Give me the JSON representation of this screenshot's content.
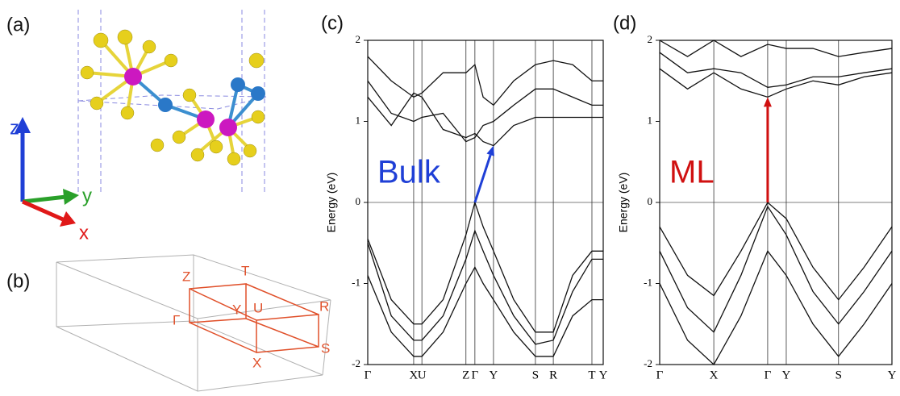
{
  "figure": {
    "panel_labels": [
      "(a)",
      "(b)"
    ],
    "axis_labels": [
      "z",
      "y",
      "x"
    ],
    "bz_points": [
      "Z",
      "T",
      "Y",
      "U",
      "R",
      "Γ",
      "X",
      "S"
    ]
  },
  "chart_data": [
    {
      "type": "line",
      "title": "(c)",
      "ylabel": "Energy (eV)",
      "annotation": "Bulk",
      "annotation_color": "#1f3fd6",
      "ylim": [
        -2,
        2
      ],
      "yticks": [
        -2,
        -1,
        0,
        1,
        2
      ],
      "xlim": [
        0,
        100
      ],
      "xticks": [
        {
          "value": 0,
          "label": "Γ"
        },
        {
          "value": 19.5,
          "label": "X"
        },
        {
          "value": 23,
          "label": "U"
        },
        {
          "value": 41.7,
          "label": "Z"
        },
        {
          "value": 45.5,
          "label": "Γ"
        },
        {
          "value": 53.4,
          "label": "Y"
        },
        {
          "value": 71.2,
          "label": "S"
        },
        {
          "value": 78.8,
          "label": "R"
        },
        {
          "value": 95.2,
          "label": "T"
        },
        {
          "value": 100,
          "label": "Y"
        }
      ],
      "x": [
        0,
        10,
        19.5,
        23,
        32,
        41.7,
        45.5,
        49,
        53.4,
        62,
        71.2,
        78.8,
        87,
        95.2,
        100
      ],
      "series": [
        {
          "color": "#111111",
          "values": [
            -0.45,
            -1.2,
            -1.5,
            -1.5,
            -1.2,
            -0.4,
            0.0,
            -0.3,
            -0.6,
            -1.2,
            -1.6,
            -1.6,
            -0.9,
            -0.6,
            -0.6
          ]
        },
        {
          "color": "#111111",
          "values": [
            -0.5,
            -1.4,
            -1.7,
            -1.7,
            -1.4,
            -0.7,
            -0.35,
            -0.6,
            -0.9,
            -1.4,
            -1.75,
            -1.7,
            -1.1,
            -0.7,
            -0.7
          ]
        },
        {
          "color": "#111111",
          "values": [
            -0.9,
            -1.6,
            -1.9,
            -1.9,
            -1.6,
            -1.0,
            -0.8,
            -1.0,
            -1.2,
            -1.6,
            -1.9,
            -1.9,
            -1.4,
            -1.2,
            -1.2
          ]
        },
        {
          "color": "#111111",
          "values": [
            1.3,
            0.95,
            1.35,
            1.3,
            0.9,
            0.8,
            0.85,
            0.75,
            0.7,
            0.95,
            1.05,
            1.05,
            1.05,
            1.05,
            1.05
          ]
        },
        {
          "color": "#111111",
          "values": [
            1.5,
            1.1,
            1.0,
            1.05,
            1.1,
            0.75,
            0.8,
            0.95,
            1.0,
            1.2,
            1.4,
            1.4,
            1.3,
            1.2,
            1.2
          ]
        },
        {
          "color": "#111111",
          "values": [
            1.8,
            1.5,
            1.3,
            1.35,
            1.6,
            1.6,
            1.7,
            1.3,
            1.2,
            1.5,
            1.7,
            1.75,
            1.7,
            1.5,
            1.5
          ]
        }
      ],
      "arrow": {
        "x": [
          45.5,
          53.4
        ],
        "y": [
          0.0,
          0.7
        ],
        "color": "#1f3fd6"
      }
    },
    {
      "type": "line",
      "title": "(d)",
      "ylabel": "Energy (eV)",
      "annotation": "ML",
      "annotation_color": "#d01010",
      "ylim": [
        -2,
        2
      ],
      "yticks": [
        -2,
        -1,
        0,
        1,
        2
      ],
      "xlim": [
        0,
        100
      ],
      "xticks": [
        {
          "value": 0,
          "label": "Γ"
        },
        {
          "value": 23.3,
          "label": "X"
        },
        {
          "value": 46.5,
          "label": "Γ"
        },
        {
          "value": 54.5,
          "label": "Y"
        },
        {
          "value": 77,
          "label": "S"
        },
        {
          "value": 100,
          "label": "Y"
        }
      ],
      "x": [
        0,
        12,
        23.3,
        35,
        46.5,
        54.5,
        66,
        77,
        88,
        100
      ],
      "series": [
        {
          "color": "#111111",
          "values": [
            -0.3,
            -0.9,
            -1.15,
            -0.6,
            0.0,
            -0.2,
            -0.8,
            -1.2,
            -0.8,
            -0.3
          ]
        },
        {
          "color": "#111111",
          "values": [
            -0.6,
            -1.3,
            -1.6,
            -0.9,
            -0.05,
            -0.4,
            -1.1,
            -1.5,
            -1.1,
            -0.6
          ]
        },
        {
          "color": "#111111",
          "values": [
            -1.0,
            -1.7,
            -2.0,
            -1.4,
            -0.6,
            -0.9,
            -1.5,
            -1.9,
            -1.5,
            -1.0
          ]
        },
        {
          "color": "#111111",
          "values": [
            1.65,
            1.4,
            1.6,
            1.4,
            1.3,
            1.4,
            1.5,
            1.45,
            1.55,
            1.6
          ]
        },
        {
          "color": "#111111",
          "values": [
            1.85,
            1.6,
            1.65,
            1.6,
            1.42,
            1.45,
            1.55,
            1.55,
            1.6,
            1.65
          ]
        },
        {
          "color": "#111111",
          "values": [
            2.0,
            1.8,
            2.0,
            1.8,
            1.95,
            1.9,
            1.9,
            1.8,
            1.85,
            1.9
          ]
        }
      ],
      "arrow": {
        "x": [
          46.5,
          46.5
        ],
        "y": [
          0.0,
          1.3
        ],
        "color": "#d01010"
      }
    }
  ]
}
